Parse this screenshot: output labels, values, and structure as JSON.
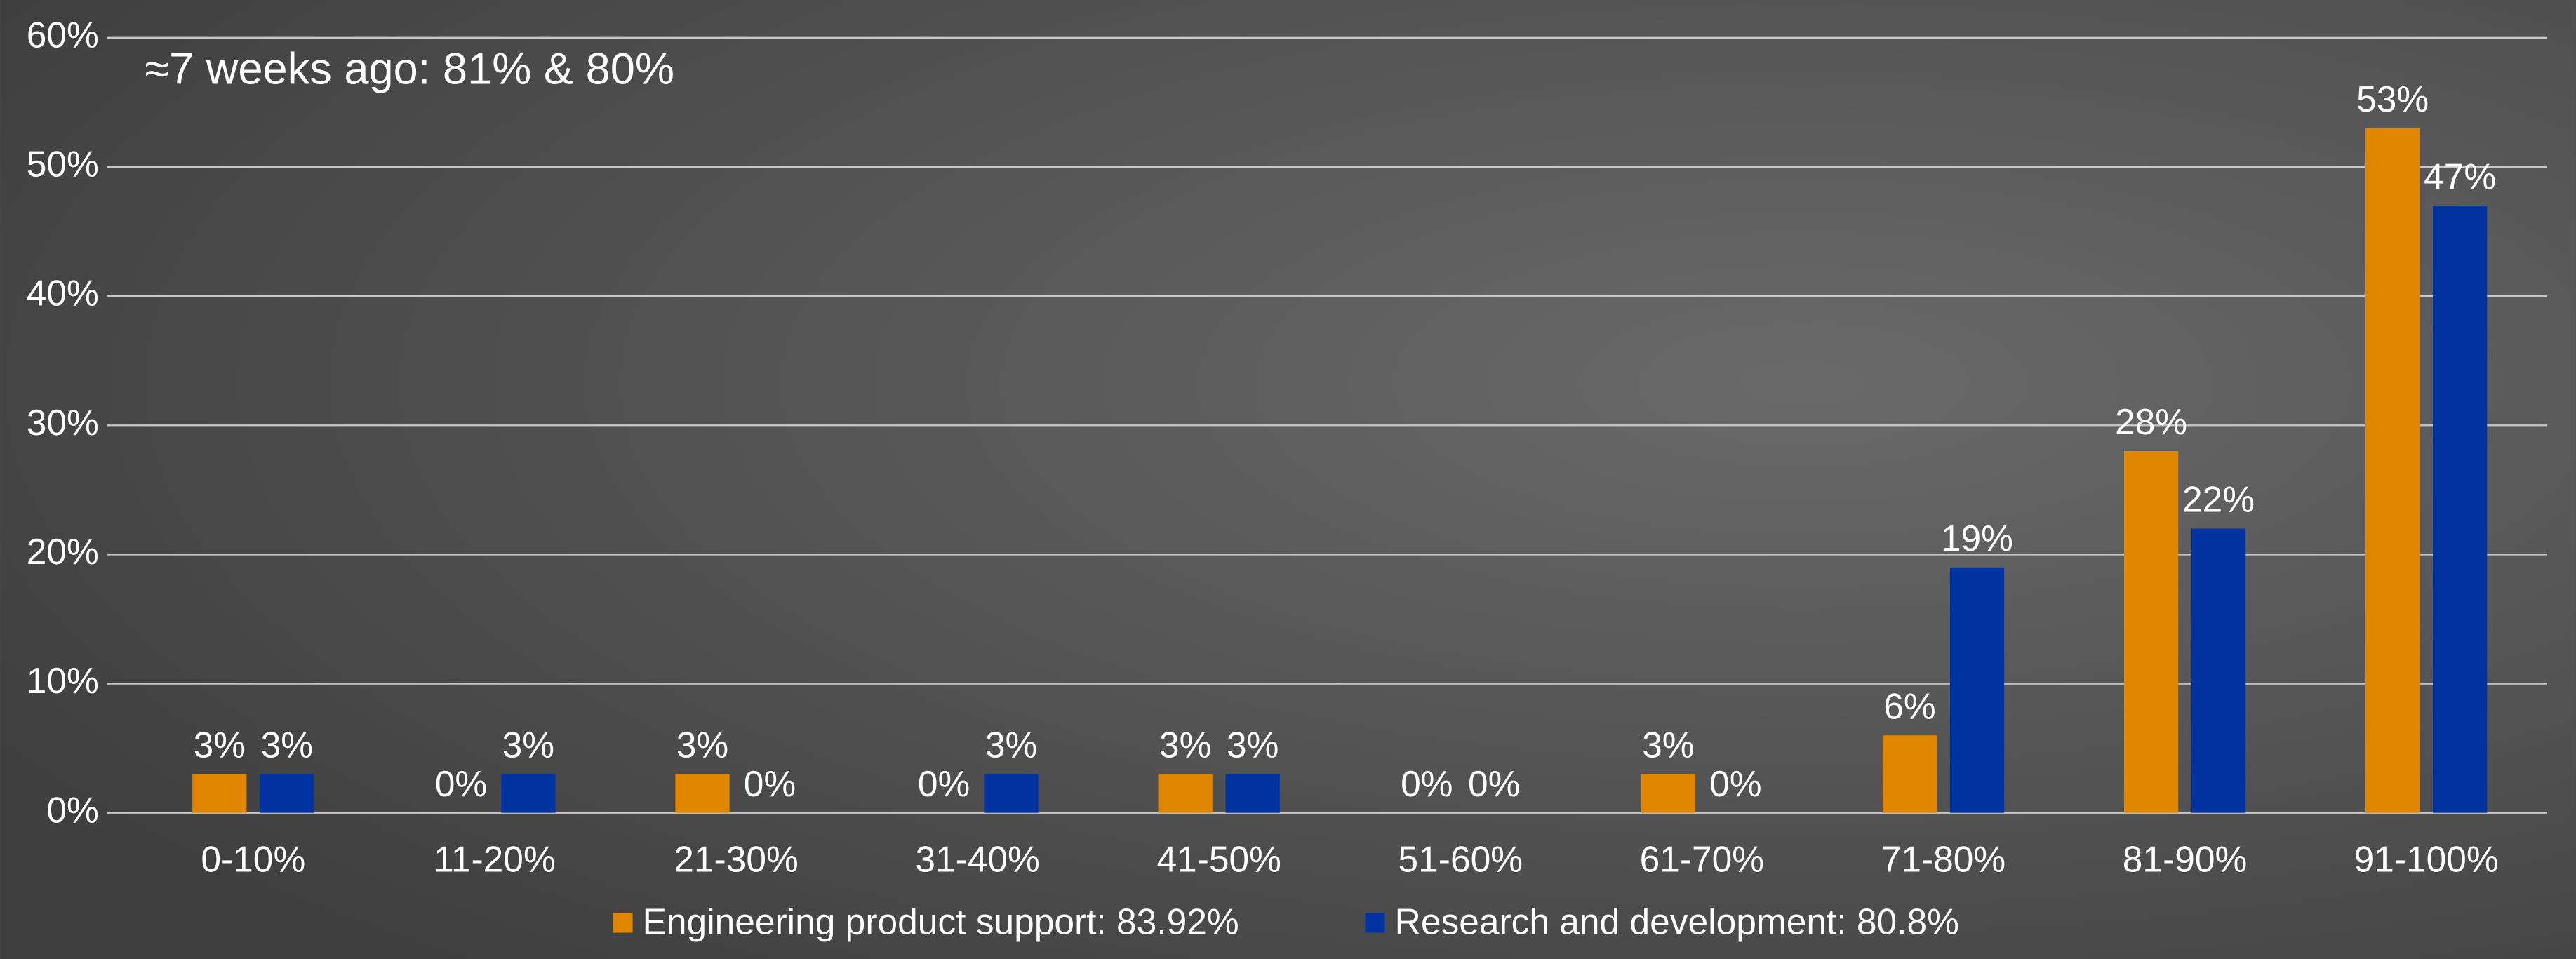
{
  "chart_data": {
    "type": "bar",
    "annotation": "≈7 weeks ago: 81% & 80%",
    "categories": [
      "0-10%",
      "11-20%",
      "21-30%",
      "31-40%",
      "41-50%",
      "51-60%",
      "61-70%",
      "71-80%",
      "81-90%",
      "91-100%"
    ],
    "series": [
      {
        "name": "Engineering product support: 83.92%",
        "color": "#e08600",
        "values": [
          3,
          0,
          3,
          0,
          3,
          0,
          3,
          6,
          28,
          53
        ],
        "value_labels": [
          "3%",
          "0%",
          "3%",
          "0%",
          "3%",
          "0%",
          "3%",
          "6%",
          "28%",
          "53%"
        ]
      },
      {
        "name": "Research and development: 80.8%",
        "color": "#0033a0",
        "values": [
          3,
          3,
          0,
          3,
          3,
          0,
          0,
          19,
          22,
          47
        ],
        "value_labels": [
          "3%",
          "3%",
          "0%",
          "3%",
          "3%",
          "0%",
          "0%",
          "19%",
          "22%",
          "47%"
        ]
      }
    ],
    "ylim": [
      0,
      60
    ],
    "yticks": [
      {
        "value": 0,
        "label": "0%"
      },
      {
        "value": 10,
        "label": "10%"
      },
      {
        "value": 20,
        "label": "20%"
      },
      {
        "value": 30,
        "label": "30%"
      },
      {
        "value": 40,
        "label": "40%"
      },
      {
        "value": 50,
        "label": "50%"
      },
      {
        "value": 60,
        "label": "60%"
      }
    ],
    "grid": true,
    "legend": "bottom"
  }
}
